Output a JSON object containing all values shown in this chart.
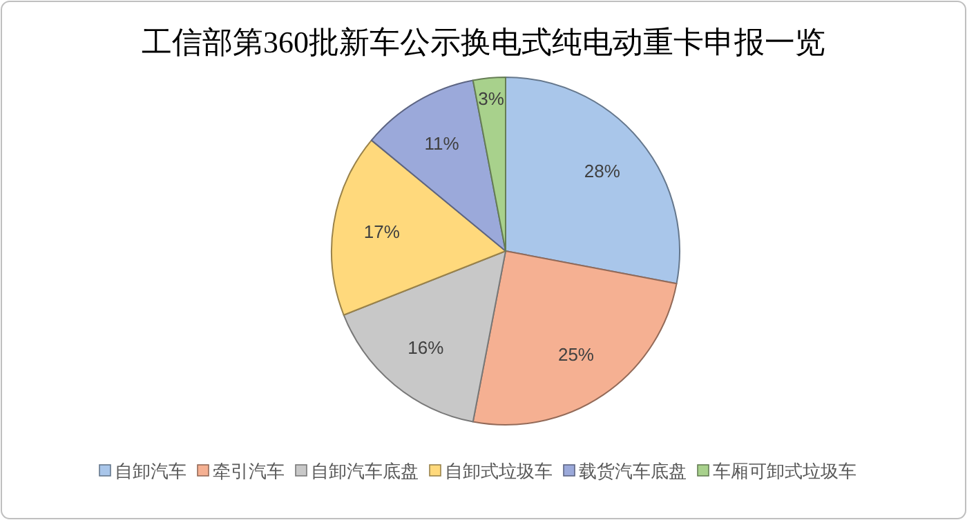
{
  "chart_data": {
    "type": "pie",
    "title": "工信部第360批新车公示换电式纯电动重卡申报一览",
    "categories": [
      "自卸汽车",
      "牵引汽车",
      "自卸汽车底盘",
      "自卸式垃圾车",
      "载货汽车底盘",
      "车厢可卸式垃圾车"
    ],
    "values": [
      28,
      25,
      16,
      17,
      11,
      3
    ],
    "colors": [
      "#a9c6ea",
      "#f5b092",
      "#c8c8c8",
      "#ffd97c",
      "#9ba9da",
      "#a8d18c"
    ],
    "value_labels": [
      "28%",
      "25%",
      "16%",
      "17%",
      "11%",
      "3%"
    ],
    "legend": "bottom"
  }
}
